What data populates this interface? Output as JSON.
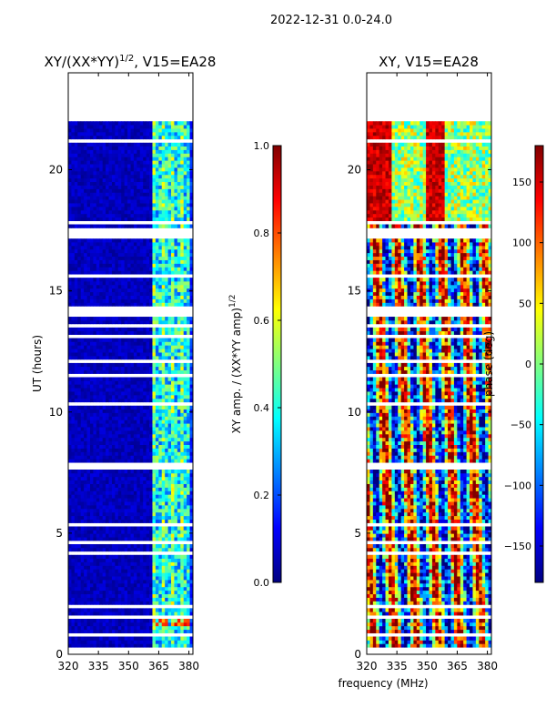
{
  "suptitle": "2022-12-31 0.0-24.0",
  "colors": {
    "background": "#ffffff",
    "frame": "#000000",
    "gap": "#ffffff",
    "jet": [
      "#000080",
      "#0000ff",
      "#0080ff",
      "#00ffff",
      "#80ff80",
      "#ffff00",
      "#ff8000",
      "#ff0000",
      "#800000"
    ]
  },
  "chart_data": [
    {
      "type": "heatmap",
      "title_main": "XY/(XX*YY)",
      "title_exp": "1/2",
      "title_rest": ", V15=EA28",
      "xlabel": "",
      "ylabel": "UT (hours)",
      "xlim": [
        320,
        382
      ],
      "ylim": [
        0,
        24
      ],
      "xticks": [
        320,
        335,
        350,
        365,
        380
      ],
      "yticks": [
        0,
        5,
        10,
        15,
        20
      ],
      "data_extent_hours": [
        0,
        22
      ],
      "freq_band_bright_mhz": [
        362,
        380
      ],
      "colorbar": {
        "label_main": "XY amp. / (XX*YY amp)",
        "label_exp": "1/2",
        "range": [
          0.0,
          1.0
        ],
        "ticks": [
          "0.0",
          "0.2",
          "0.4",
          "0.6",
          "0.8",
          "1.0"
        ]
      }
    },
    {
      "type": "heatmap",
      "title_main": "XY, V15=EA28",
      "title_exp": "",
      "title_rest": "",
      "xlabel": "frequency (MHz)",
      "ylabel": "",
      "xlim": [
        320,
        382
      ],
      "ylim": [
        0,
        24
      ],
      "xticks": [
        320,
        335,
        350,
        365,
        380
      ],
      "yticks": [
        0,
        5,
        10,
        15,
        20
      ],
      "data_extent_hours": [
        0,
        22
      ],
      "colorbar": {
        "label_main": "phase (deg)",
        "label_exp": "",
        "range": [
          -180,
          180
        ],
        "ticks": [
          "−150",
          "−100",
          "−50",
          "0",
          "50",
          "100",
          "150"
        ]
      }
    }
  ]
}
